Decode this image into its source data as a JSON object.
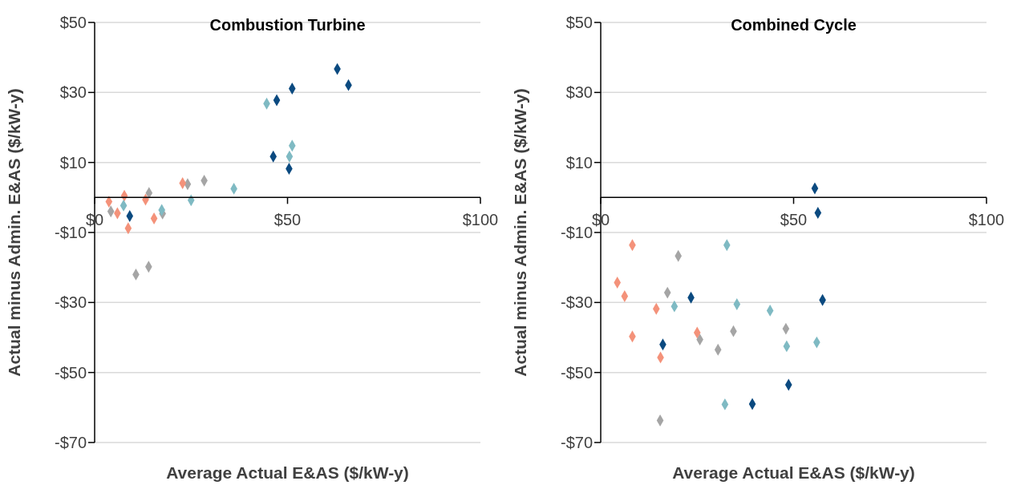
{
  "chart_data": [
    {
      "type": "scatter",
      "title": "Combustion Turbine",
      "xlabel": "Average Actual E&AS ($/kW-y)",
      "ylabel": "Actual minus Admin. E&AS ($/kW-y)",
      "marker": "diamond",
      "grid": "y",
      "xlim": [
        0,
        100
      ],
      "xticks": [
        {
          "value": 0,
          "label": "$0"
        },
        {
          "value": 50,
          "label": "$50"
        },
        {
          "value": 100,
          "label": "$100"
        }
      ],
      "ylim": [
        -70,
        50
      ],
      "yticks": [
        {
          "value": -70,
          "label": "-$70"
        },
        {
          "value": -50,
          "label": "-$50"
        },
        {
          "value": -30,
          "label": "-$30"
        },
        {
          "value": -10,
          "label": "-$10"
        },
        {
          "value": 10,
          "label": "$10"
        },
        {
          "value": 30,
          "label": "$30"
        },
        {
          "value": 50,
          "label": "$50"
        }
      ],
      "series": [
        {
          "color": "#a5a5a5",
          "x": [
            28.4,
            24.1,
            14.1,
            17.6,
            4.2,
            14.0,
            10.7
          ],
          "values": [
            4.8,
            3.8,
            1.3,
            -4.6,
            -4.0,
            -19.8,
            -22.0
          ]
        },
        {
          "color": "#f4927a",
          "x": [
            22.8,
            7.7,
            13.2,
            3.7,
            5.9,
            15.4,
            8.7
          ],
          "values": [
            4.1,
            0.5,
            -0.6,
            -1.2,
            -4.5,
            -6.0,
            -8.8
          ]
        },
        {
          "color": "#7fbac3",
          "x": [
            44.6,
            51.2,
            50.5,
            36.1,
            25.0,
            17.4,
            7.5
          ],
          "values": [
            26.8,
            14.8,
            11.7,
            2.5,
            -0.8,
            -3.6,
            -2.3
          ]
        },
        {
          "color": "#0b4a80",
          "x": [
            62.9,
            65.8,
            51.2,
            47.2,
            46.3,
            50.4,
            9.1
          ],
          "values": [
            36.7,
            32.1,
            31.1,
            27.8,
            11.7,
            8.2,
            -5.3
          ]
        }
      ]
    },
    {
      "type": "scatter",
      "title": "Combined Cycle",
      "xlabel": "Average Actual E&AS ($/kW-y)",
      "ylabel": "Actual minus Admin. E&AS ($/kW-y)",
      "marker": "diamond",
      "grid": "y",
      "xlim": [
        0,
        100
      ],
      "xticks": [
        {
          "value": 0,
          "label": "$0"
        },
        {
          "value": 50,
          "label": "$50"
        },
        {
          "value": 100,
          "label": "$100"
        }
      ],
      "ylim": [
        -70,
        50
      ],
      "yticks": [
        {
          "value": -70,
          "label": "-$70"
        },
        {
          "value": -50,
          "label": "-$50"
        },
        {
          "value": -30,
          "label": "-$30"
        },
        {
          "value": -10,
          "label": "-$10"
        },
        {
          "value": 10,
          "label": "$10"
        },
        {
          "value": 30,
          "label": "$30"
        },
        {
          "value": 50,
          "label": "$50"
        }
      ],
      "series": [
        {
          "color": "#a5a5a5",
          "x": [
            20.1,
            17.3,
            34.4,
            48.0,
            25.7,
            30.4,
            15.4
          ],
          "values": [
            -16.7,
            -27.2,
            -38.2,
            -37.5,
            -40.6,
            -43.5,
            -63.7
          ]
        },
        {
          "color": "#f4927a",
          "x": [
            8.2,
            4.3,
            6.2,
            14.4,
            8.2,
            25.0,
            15.5
          ],
          "values": [
            -13.6,
            -24.3,
            -28.2,
            -31.8,
            -39.7,
            -38.6,
            -45.7
          ]
        },
        {
          "color": "#7fbac3",
          "x": [
            32.7,
            19.1,
            35.3,
            43.9,
            48.2,
            56.0,
            32.2
          ],
          "values": [
            -13.6,
            -31.1,
            -30.5,
            -32.3,
            -42.5,
            -41.4,
            -59.1
          ]
        },
        {
          "color": "#0b4a80",
          "x": [
            55.5,
            56.3,
            57.5,
            23.4,
            16.1,
            48.7,
            39.3
          ],
          "values": [
            2.6,
            -4.4,
            -29.3,
            -28.6,
            -42.0,
            -53.5,
            -59.0
          ]
        }
      ]
    }
  ]
}
